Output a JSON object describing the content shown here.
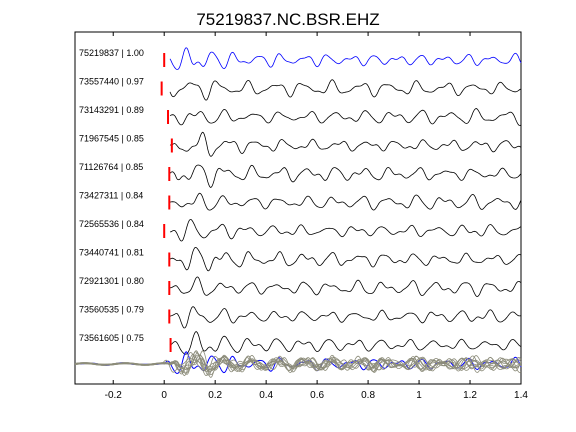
{
  "chart_data": {
    "type": "line",
    "title": "75219837.NC.BSR.EHZ",
    "xlabel": "",
    "ylabel": "",
    "xlim": [
      -0.35,
      1.4
    ],
    "xticks": [
      -0.2,
      0,
      0.2,
      0.4,
      0.6,
      0.8,
      1,
      1.2,
      1.4
    ],
    "xtick_labels": [
      "-0.2",
      "0",
      "0.2",
      "0.4",
      "0.6",
      "0.8",
      "1",
      "1.2",
      "1.4"
    ],
    "grid": false,
    "colors": {
      "master": "#0000ff",
      "trace": "#000000",
      "pick": "#ff0000",
      "stack": "#8c8c7a"
    },
    "series": [
      {
        "label": "75219837 | 1.00",
        "pick_time": 0.0,
        "master": true
      },
      {
        "label": "73557440 | 0.97",
        "pick_time": -0.01
      },
      {
        "label": "73143291 | 0.89",
        "pick_time": 0.015
      },
      {
        "label": "71967545 | 0.85",
        "pick_time": 0.03
      },
      {
        "label": "71126764 | 0.85",
        "pick_time": 0.02
      },
      {
        "label": "73427311 | 0.84",
        "pick_time": 0.02
      },
      {
        "label": "72565536 | 0.84",
        "pick_time": 0.0
      },
      {
        "label": "73440741 | 0.81",
        "pick_time": 0.02
      },
      {
        "label": "72921301 | 0.80",
        "pick_time": 0.02
      },
      {
        "label": "73560535 | 0.79",
        "pick_time": 0.02
      },
      {
        "label": "73561605 | 0.75",
        "pick_time": 0.025
      }
    ]
  }
}
